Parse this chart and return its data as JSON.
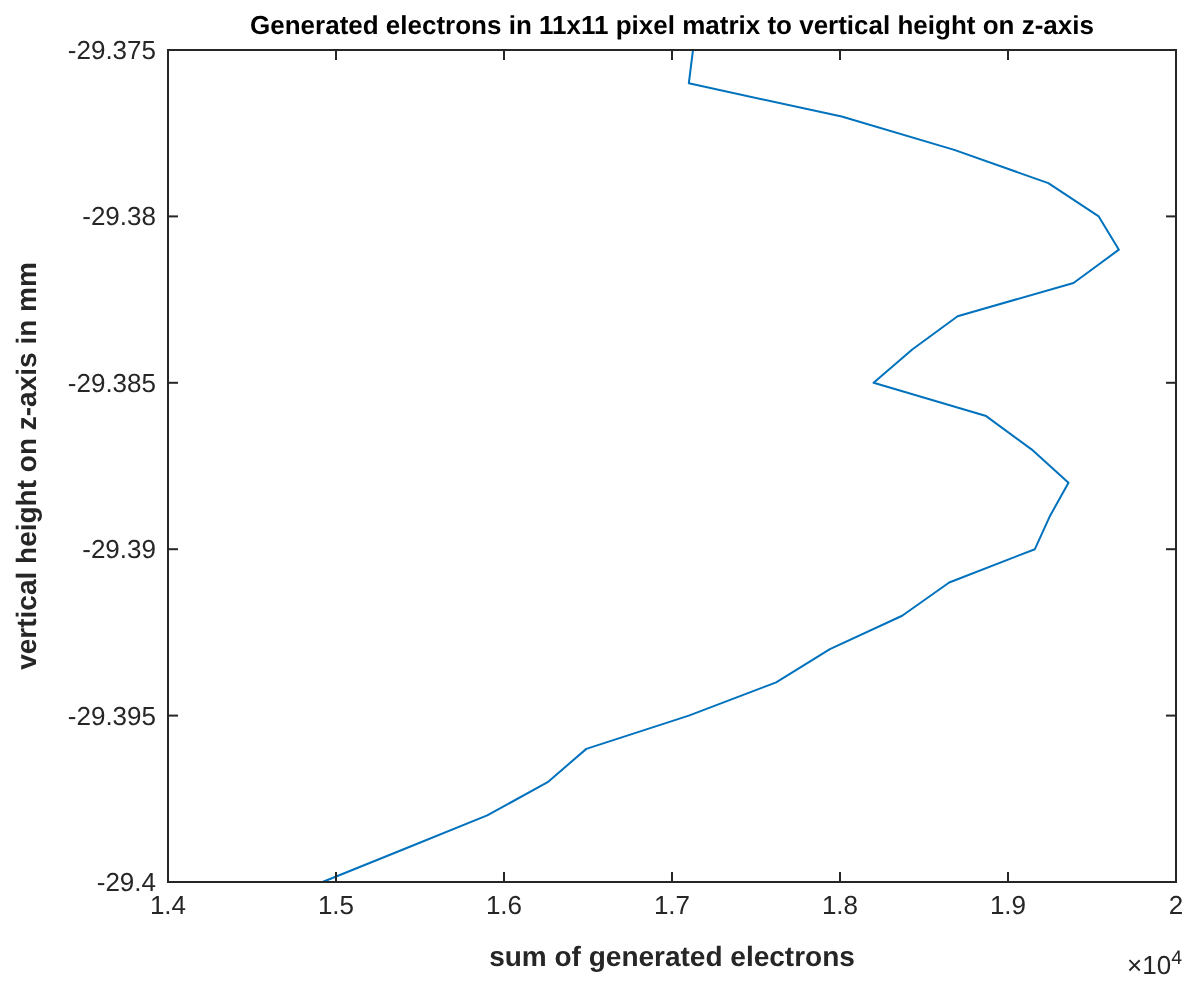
{
  "chart_data": {
    "type": "line",
    "title": "Generated electrons in 11x11 pixel matrix to vertical height on z-axis",
    "xlabel": "sum of generated electrons",
    "ylabel": "vertical height on z-axis in mm",
    "annotations": [
      "×10$^{4}$"
    ],
    "series": [
      {
        "color": "#0072bd",
        "x": [
          1.7125,
          1.71,
          1.801,
          1.868,
          1.924,
          1.954,
          1.966,
          1.939,
          1.87,
          1.843,
          1.82,
          1.887,
          1.914,
          1.936,
          1.925,
          1.916,
          1.865,
          1.837,
          1.794,
          1.762,
          1.71,
          1.649,
          1.626,
          1.59,
          1.541,
          1.492
        ],
        "values": [
          -29.375,
          -29.376,
          -29.377,
          -29.378,
          -29.379,
          -29.38,
          -29.381,
          -29.382,
          -29.383,
          -29.384,
          -29.385,
          -29.386,
          -29.387,
          -29.388,
          -29.389,
          -29.39,
          -29.391,
          -29.392,
          -29.393,
          -29.394,
          -29.395,
          -29.396,
          -29.397,
          -29.398,
          -29.399,
          -29.4
        ]
      }
    ],
    "xlim": [
      1.4,
      2
    ],
    "xticks": [
      1.4,
      1.5,
      1.6,
      1.7,
      1.8,
      1.9,
      2
    ],
    "ylim": [
      -29.4,
      -29.375
    ],
    "yticks": [
      -29.4,
      -29.395,
      -29.39,
      -29.385,
      -29.38,
      -29.375
    ],
    "grid": false,
    "line_style": "solid"
  }
}
